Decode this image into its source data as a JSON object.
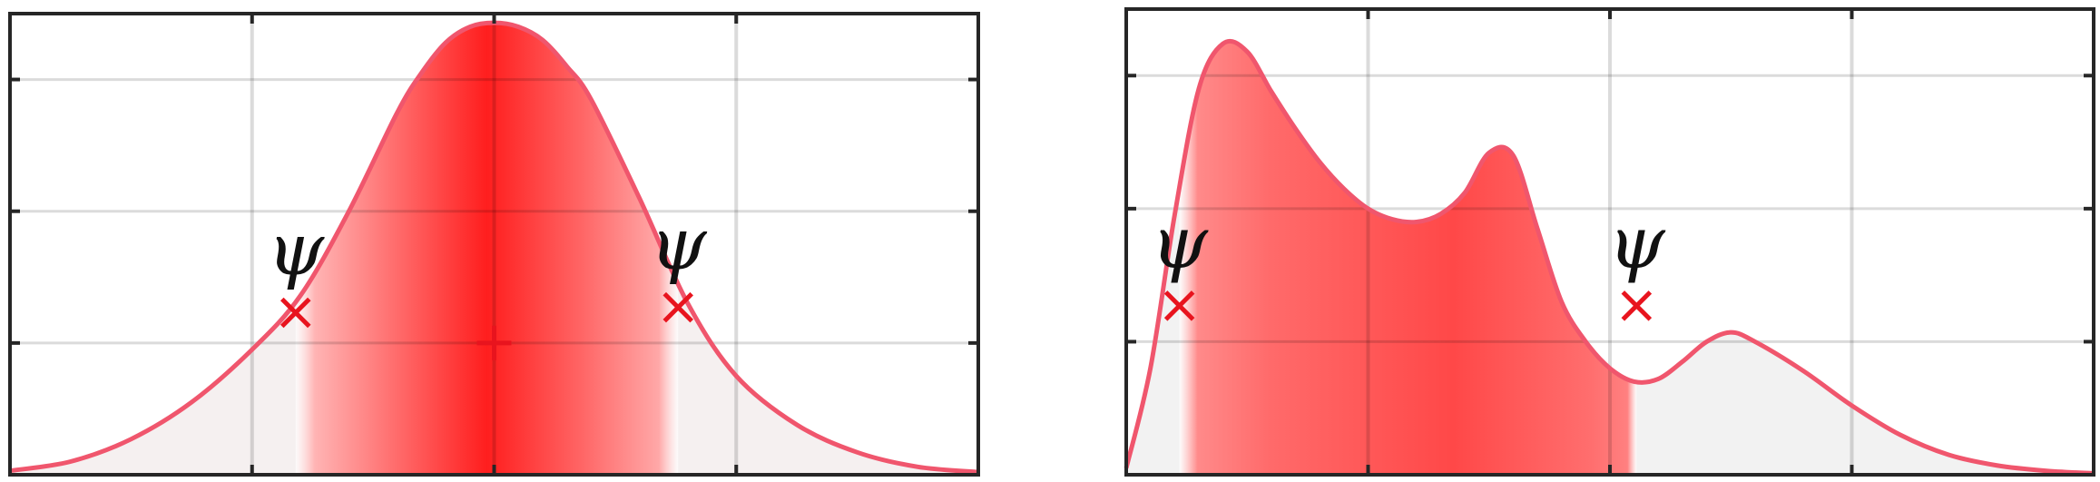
{
  "chart_data": [
    {
      "type": "area",
      "xlabel": "",
      "ylabel": "",
      "title": "",
      "xlim": [
        0,
        4
      ],
      "ylim": [
        0,
        3.5
      ],
      "xticks": [
        1,
        2,
        3
      ],
      "yticks": [
        1,
        2,
        3
      ],
      "grid": true,
      "curve": {
        "x": [
          0.0,
          0.25,
          0.5,
          0.75,
          1.0,
          1.2,
          1.4,
          1.6,
          1.7,
          1.8,
          1.9,
          2.0,
          2.1,
          2.2,
          2.3,
          2.4,
          2.6,
          2.8,
          3.0,
          3.25,
          3.5,
          3.75,
          4.0
        ],
        "y": [
          0.03,
          0.1,
          0.27,
          0.55,
          0.95,
          1.36,
          2.0,
          2.75,
          3.05,
          3.28,
          3.4,
          3.43,
          3.4,
          3.3,
          3.1,
          2.85,
          2.1,
          1.3,
          0.75,
          0.38,
          0.17,
          0.06,
          0.02
        ]
      },
      "shaded_interval": [
        1.18,
        2.76
      ],
      "center_marker": {
        "x": 2.0,
        "y": 1.0,
        "symbol": "+"
      },
      "threshold_markers": [
        {
          "x": 1.18,
          "y": 1.23,
          "symbol": "x",
          "label": "ψ"
        },
        {
          "x": 2.76,
          "y": 1.27,
          "symbol": "x",
          "label": "ψ"
        }
      ],
      "colors": {
        "curve": "#f0566d",
        "fill_peak": "#ff2a2a",
        "marker": "#e8141e",
        "tail_fill": "#f5f0f0"
      }
    },
    {
      "type": "area",
      "xlabel": "",
      "ylabel": "",
      "title": "",
      "xlim": [
        0,
        4
      ],
      "ylim": [
        0,
        3.5
      ],
      "xticks": [
        1,
        2,
        3
      ],
      "yticks": [
        1,
        2,
        3
      ],
      "grid": true,
      "curve": {
        "x": [
          0.0,
          0.1,
          0.2,
          0.3,
          0.4,
          0.5,
          0.6,
          0.7,
          0.8,
          0.9,
          1.0,
          1.1,
          1.2,
          1.3,
          1.4,
          1.5,
          1.6,
          1.7,
          1.8,
          1.9,
          2.0,
          2.1,
          2.2,
          2.3,
          2.4,
          2.5,
          2.6,
          2.8,
          3.0,
          3.2,
          3.4,
          3.6,
          3.8,
          4.0
        ],
        "y": [
          0.05,
          0.8,
          1.95,
          2.9,
          3.24,
          3.18,
          2.88,
          2.6,
          2.35,
          2.15,
          2.0,
          1.92,
          1.9,
          1.96,
          2.12,
          2.42,
          2.4,
          1.85,
          1.3,
          1.0,
          0.8,
          0.7,
          0.72,
          0.85,
          1.0,
          1.07,
          1.0,
          0.78,
          0.52,
          0.3,
          0.15,
          0.07,
          0.03,
          0.01
        ]
      },
      "shaded_interval": [
        0.22,
        2.11
      ],
      "threshold_markers": [
        {
          "x": 0.22,
          "y": 1.27,
          "symbol": "x",
          "label": "ψ"
        },
        {
          "x": 2.11,
          "y": 1.27,
          "symbol": "x",
          "label": "ψ"
        }
      ],
      "colors": {
        "curve": "#f0566d",
        "fill_peak": "#ff2a2a",
        "marker": "#e8141e",
        "tail_fill": "#f2f2f2"
      }
    }
  ]
}
